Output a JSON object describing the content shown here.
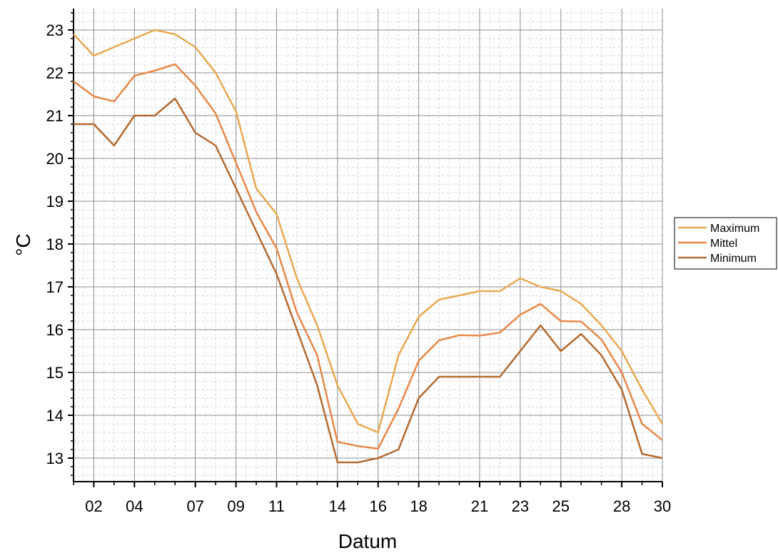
{
  "chart_data": {
    "type": "line",
    "xlabel": "Datum",
    "ylabel": "°C",
    "xlim": [
      1,
      30
    ],
    "ylim": [
      12.45,
      23.5
    ],
    "x": [
      1,
      2,
      3,
      4,
      5,
      6,
      7,
      8,
      9,
      10,
      11,
      12,
      13,
      14,
      15,
      16,
      17,
      18,
      19,
      20,
      21,
      22,
      23,
      24,
      25,
      26,
      27,
      28,
      29,
      30
    ],
    "x_ticks": [
      2,
      4,
      7,
      9,
      11,
      14,
      16,
      18,
      21,
      23,
      25,
      28,
      30
    ],
    "x_tick_labels": [
      "02",
      "04",
      "07",
      "09",
      "11",
      "14",
      "16",
      "18",
      "21",
      "23",
      "25",
      "28",
      "30"
    ],
    "y_ticks": [
      13,
      14,
      15,
      16,
      17,
      18,
      19,
      20,
      21,
      22,
      23
    ],
    "y_tick_labels": [
      "13",
      "14",
      "15",
      "16",
      "17",
      "18",
      "19",
      "20",
      "21",
      "22",
      "23"
    ],
    "grid": true,
    "legend_position": "right",
    "series": [
      {
        "name": "Maximum",
        "color": "#E8A852",
        "values": [
          22.9,
          22.4,
          22.6,
          22.8,
          23.0,
          22.9,
          22.6,
          22.0,
          21.1,
          19.3,
          18.7,
          17.2,
          16.1,
          14.7,
          13.8,
          13.6,
          15.4,
          16.3,
          16.7,
          16.8,
          16.9,
          16.9,
          17.2,
          17.0,
          16.9,
          16.6,
          16.1,
          15.5,
          14.6,
          13.8
        ]
      },
      {
        "name": "Mittel",
        "color": "#E8884A",
        "values": [
          21.8,
          21.45,
          21.33,
          21.93,
          22.05,
          22.2,
          21.7,
          21.05,
          19.9,
          18.75,
          17.9,
          16.4,
          15.4,
          13.38,
          13.28,
          13.22,
          14.15,
          15.27,
          15.75,
          15.87,
          15.86,
          15.93,
          16.35,
          16.6,
          16.2,
          16.19,
          15.77,
          15.0,
          13.8,
          13.42
        ]
      },
      {
        "name": "Minimum",
        "color": "#B56A30",
        "values": [
          20.8,
          20.8,
          20.3,
          21.0,
          21.0,
          21.4,
          20.6,
          20.3,
          19.3,
          18.3,
          17.3,
          16.0,
          14.7,
          12.9,
          12.9,
          13.0,
          13.2,
          14.4,
          14.9,
          14.9,
          14.9,
          14.9,
          15.5,
          16.1,
          15.5,
          15.9,
          15.4,
          14.6,
          13.1,
          13.0
        ]
      }
    ]
  }
}
